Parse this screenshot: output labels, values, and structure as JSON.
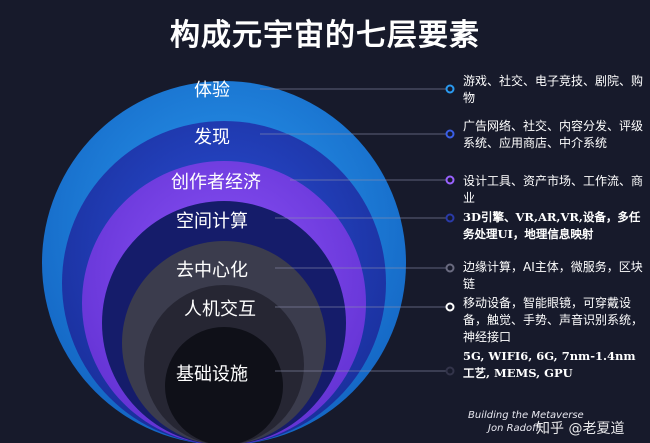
{
  "title": "构成元宇宙的七层要素",
  "layers": [
    {
      "label": "体验",
      "description": "游戏、社交、电子竞技、剧院、购物",
      "color": "#1c7fd8"
    },
    {
      "label": "发现",
      "description": "广告网络、社交、内容分发、评级系统、应用商店、中介系统",
      "color": "#1d3fb8"
    },
    {
      "label": "创作者经济",
      "description": "设计工具、资产市场、工作流、商业",
      "color": "#7a3ef0"
    },
    {
      "label": "空间计算",
      "description": "3D引擎、VR,AR,VR,设备，多任务处理UI，地理信息映射",
      "color": "#151c6a"
    },
    {
      "label": "去中心化",
      "description": "边缘计算，AI主体，微服务，区块链",
      "color": "#3b3c4d"
    },
    {
      "label": "人机交互",
      "description": "移动设备，智能眼镜，可穿戴设备，触觉、手势、声音识别系统，神经接口",
      "color": "#262633"
    },
    {
      "label": "基础设施",
      "description": "5G, WIFI6, 6G, 7nm-1.4nm工艺, MEMS, GPU",
      "color": "#0f1018"
    }
  ],
  "credit": "Building the Metaverse",
  "credit2": "Jon Radoff",
  "watermark": "知乎 @老夏道"
}
